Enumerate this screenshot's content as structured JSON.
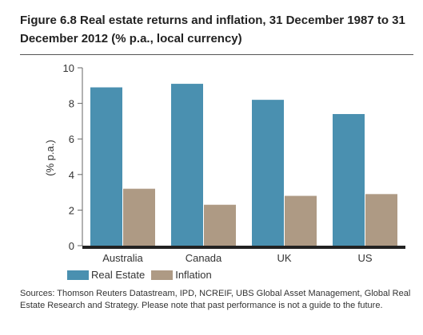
{
  "figure": {
    "title": "Figure 6.8 Real estate returns and inflation, 31 December 1987 to 31 December 2012 (% p.a., local currency)",
    "source": "Sources: Thomson Reuters Datastream, IPD, NCREIF, UBS Global Asset Management, Global Real Estate Research and Strategy. Please note that past performance is not a guide to the future."
  },
  "chart_data": {
    "type": "bar",
    "title": "Figure 6.8 Real estate returns and inflation, 31 December 1987 to 31 December 2012 (% p.a., local currency)",
    "xlabel": "",
    "ylabel": "(% p.a.)",
    "ylim": [
      0,
      10
    ],
    "yticks": [
      "0",
      "2",
      "4",
      "6",
      "8",
      "10"
    ],
    "categories": [
      "Australia",
      "Canada",
      "UK",
      "US"
    ],
    "series": [
      {
        "name": "Real Estate",
        "color": "#4a90b0",
        "values": [
          8.9,
          9.1,
          8.2,
          7.4
        ]
      },
      {
        "name": "Inflation",
        "color": "#ae9a84",
        "values": [
          3.2,
          2.3,
          2.8,
          2.9
        ]
      }
    ],
    "grid": false,
    "legend": "bottom-left"
  }
}
